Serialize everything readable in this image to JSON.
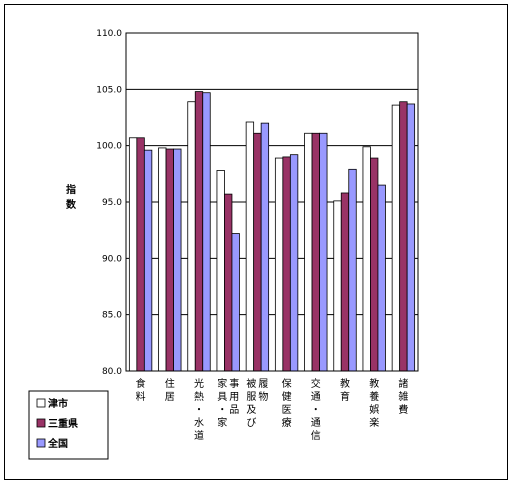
{
  "chart_data": {
    "type": "bar",
    "ylabel": "指数",
    "ylim": [
      80,
      110
    ],
    "yticks": [
      "80.0",
      "85.0",
      "90.0",
      "95.0",
      "100.0",
      "105.0",
      "110.0"
    ],
    "grid": true,
    "legend_position": "bottom-left",
    "categories": [
      "食料",
      "住居",
      "光熱・水道",
      "家具・家事用品",
      "被服及び履物",
      "保健医療",
      "交通・通信",
      "教育",
      "教養娯楽",
      "諸雑費"
    ],
    "series": [
      {
        "name": "津市",
        "color": "#ffffff",
        "values": [
          100.7,
          99.8,
          103.9,
          97.8,
          102.1,
          98.9,
          101.1,
          95.1,
          99.9,
          103.6
        ]
      },
      {
        "name": "三重県",
        "color": "#993366",
        "values": [
          100.7,
          99.7,
          104.8,
          95.7,
          101.1,
          99.0,
          101.1,
          95.8,
          98.9,
          103.9
        ]
      },
      {
        "name": "全国",
        "color": "#9999ff",
        "values": [
          99.6,
          99.7,
          104.7,
          92.2,
          102.0,
          99.2,
          101.1,
          97.9,
          96.5,
          103.7
        ]
      }
    ]
  }
}
